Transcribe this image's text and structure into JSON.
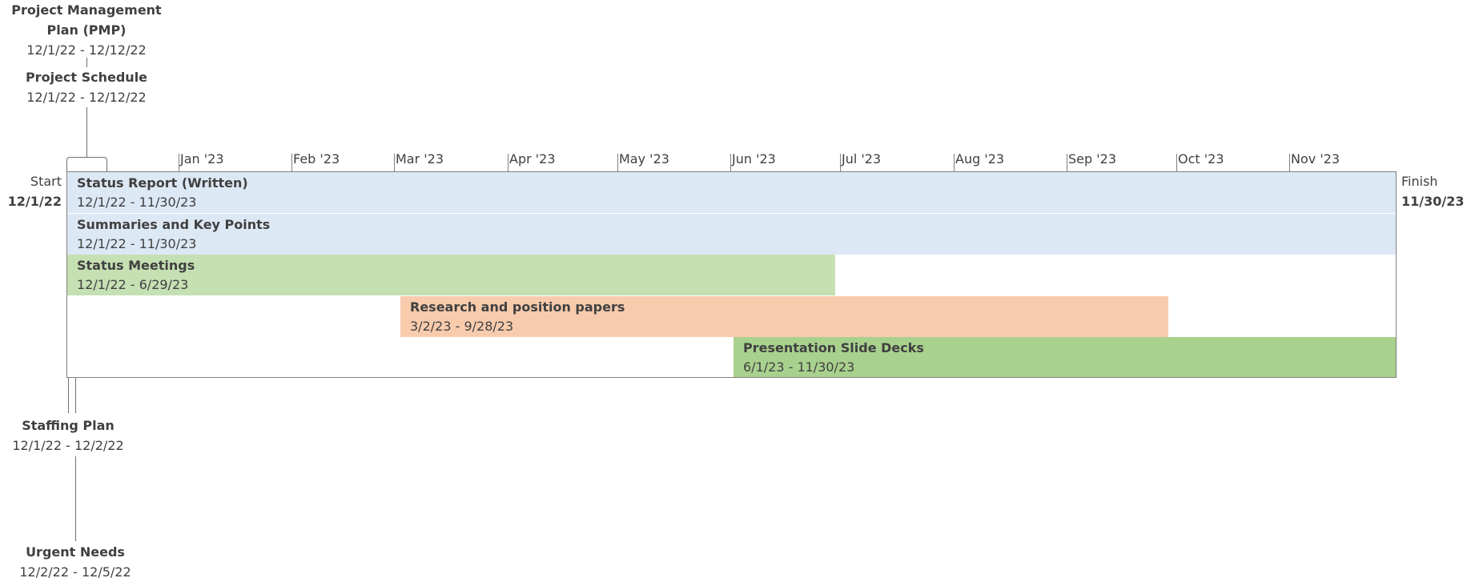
{
  "timeline": {
    "start": {
      "label": "Start",
      "date": "12/1/22"
    },
    "finish": {
      "label": "Finish",
      "date": "11/30/23"
    },
    "months": [
      "Jan '23",
      "Feb '23",
      "Mar '23",
      "Apr '23",
      "May '23",
      "Jun '23",
      "Jul '23",
      "Aug '23",
      "Sep '23",
      "Oct '23",
      "Nov '23"
    ]
  },
  "callouts_above": [
    {
      "title_line1": "Project Management",
      "title_line2": "Plan (PMP)",
      "dates": "12/1/22 - 12/12/22"
    },
    {
      "title": "Project Schedule",
      "dates": "12/1/22 - 12/12/22"
    }
  ],
  "callouts_below": [
    {
      "title": "Staffing Plan",
      "dates": "12/1/22 - 12/2/22"
    },
    {
      "title": "Urgent Needs",
      "dates": "12/2/22 - 12/5/22"
    }
  ],
  "tasks": [
    {
      "title": "Status Report (Written)",
      "dates": "12/1/22 - 11/30/23",
      "color": "#dde8f5"
    },
    {
      "title": "Summaries and Key Points",
      "dates": "12/1/22 - 11/30/23",
      "color": "#dde8f5"
    },
    {
      "title": "Status Meetings",
      "dates": "12/1/22 - 6/29/23",
      "color": "#c5e0b3"
    },
    {
      "title": "Research and position papers",
      "dates": "3/2/23 - 9/28/23",
      "color": "#f8cbad"
    },
    {
      "title": "Presentation Slide Decks",
      "dates": "6/1/23 - 11/30/23",
      "color": "#a9d18e"
    }
  ]
}
